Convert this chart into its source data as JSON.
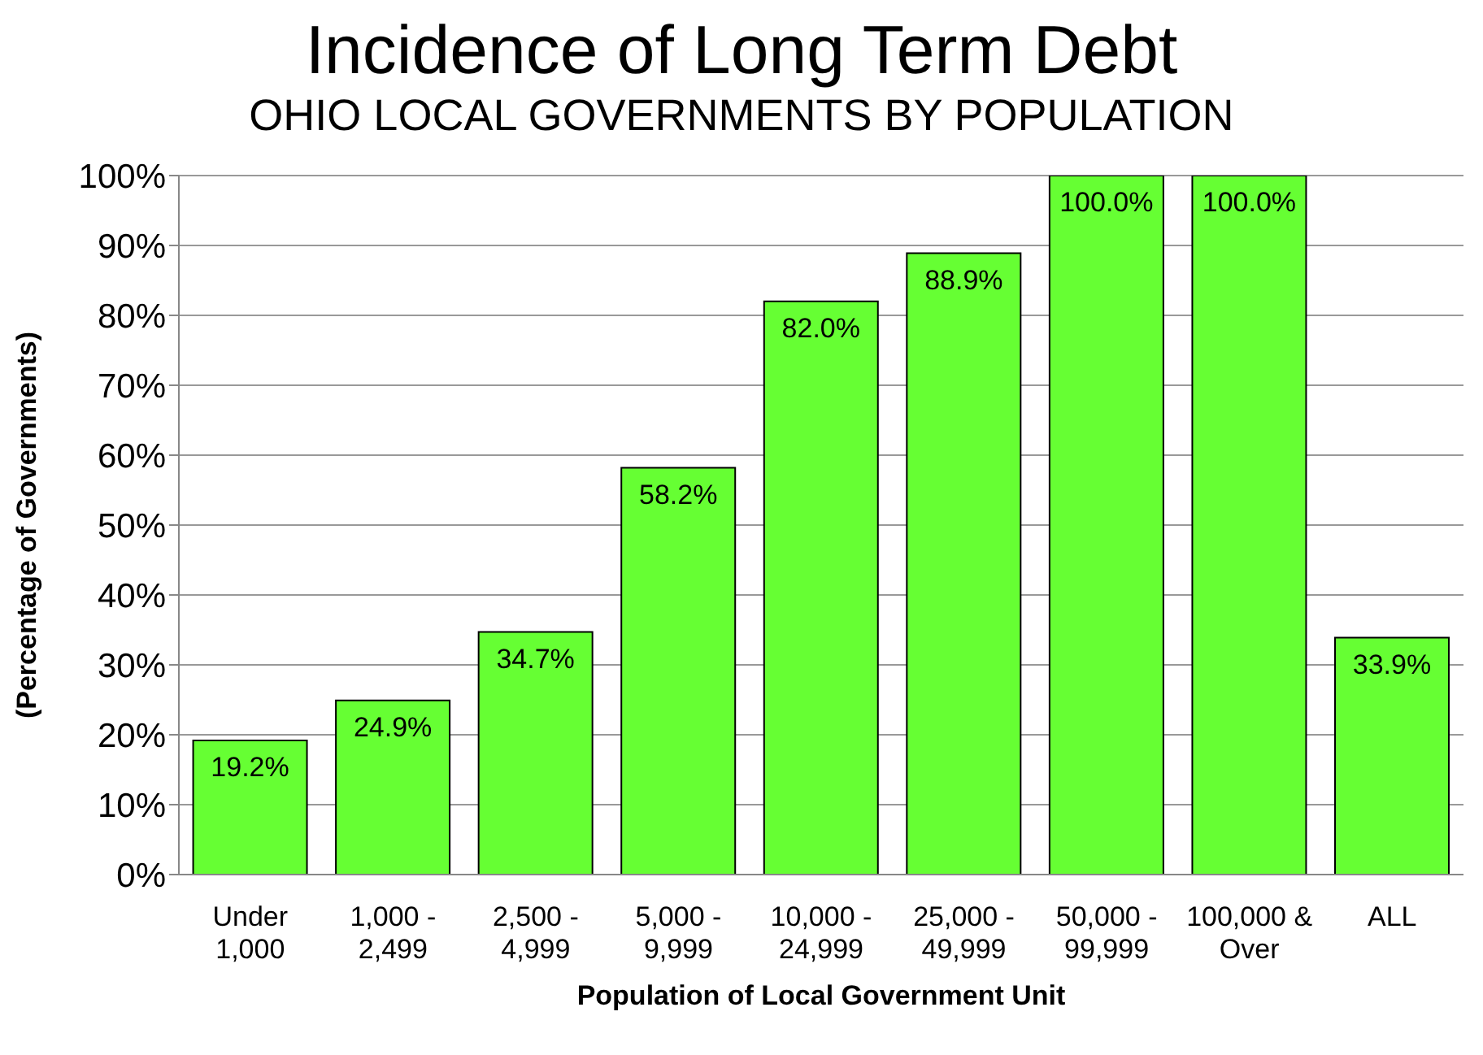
{
  "chart_data": {
    "type": "bar",
    "title": "Incidence of Long Term Debt",
    "subtitle": "OHIO LOCAL GOVERNMENTS BY POPULATION",
    "xlabel": "Population of Local Government Unit",
    "ylabel": "(Percentage of Governments)",
    "categories": [
      "Under 1,000",
      "1,000 - 2,499",
      "2,500 - 4,999",
      "5,000 - 9,999",
      "10,000 - 24,999",
      "25,000 - 49,999",
      "50,000 - 99,999",
      "100,000 & Over",
      "ALL"
    ],
    "values": [
      19.2,
      24.9,
      34.7,
      58.2,
      82.0,
      88.9,
      100.0,
      100.0,
      33.9
    ],
    "value_labels": [
      "19.2%",
      "24.9%",
      "34.7%",
      "58.2%",
      "82.0%",
      "88.9%",
      "100.0%",
      "100.0%",
      "33.9%"
    ],
    "color": "#66ff33",
    "ylim": [
      0,
      100
    ],
    "yticks": [
      {
        "value": 0,
        "label": "0%"
      },
      {
        "value": 10,
        "label": "10%"
      },
      {
        "value": 20,
        "label": "20%"
      },
      {
        "value": 30,
        "label": "30%"
      },
      {
        "value": 40,
        "label": "40%"
      },
      {
        "value": 50,
        "label": "50%"
      },
      {
        "value": 60,
        "label": "60%"
      },
      {
        "value": 70,
        "label": "70%"
      },
      {
        "value": 80,
        "label": "80%"
      },
      {
        "value": 90,
        "label": "90%"
      },
      {
        "value": 100,
        "label": "100%"
      }
    ],
    "grid": "y",
    "legend": false
  }
}
